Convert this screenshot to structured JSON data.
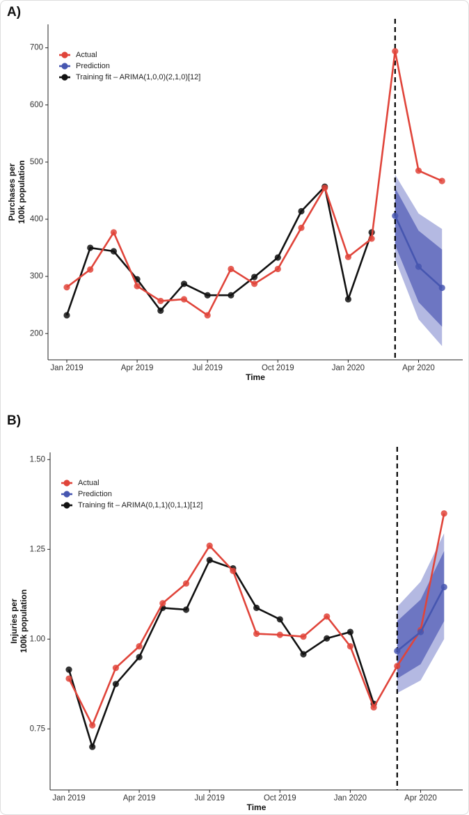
{
  "chart_data": [
    {
      "type": "line",
      "panel_label": "A)",
      "x_label": "Time",
      "y_label": [
        "Purchases per",
        "100k population"
      ],
      "categories": [
        "Jan 2019",
        null,
        null,
        "Apr 2019",
        null,
        null,
        "Jul 2019",
        null,
        null,
        "Oct 2019",
        null,
        null,
        "Jan 2020",
        null,
        null,
        "Apr 2020",
        null
      ],
      "ylim": [
        154,
        741
      ],
      "yticks": [
        200,
        300,
        400,
        500,
        600,
        700
      ],
      "legend": "top-left",
      "forecast_line": true,
      "series": [
        {
          "name": "Actual",
          "color": "#e0443a",
          "values": [
            281,
            312,
            377,
            283,
            257,
            260,
            232,
            313,
            287,
            313,
            385,
            455,
            334,
            366,
            694,
            485,
            467
          ]
        },
        {
          "name": "Prediction",
          "color": "#4656b0",
          "values": [
            null,
            null,
            null,
            null,
            null,
            null,
            null,
            null,
            null,
            null,
            null,
            null,
            null,
            null,
            406,
            317,
            280
          ],
          "bands": [
            {
              "color": "#b4b9e2",
              "low": [
                null,
                null,
                null,
                null,
                null,
                null,
                null,
                null,
                null,
                null,
                null,
                null,
                null,
                null,
                330,
                225,
                178
              ],
              "high": [
                null,
                null,
                null,
                null,
                null,
                null,
                null,
                null,
                null,
                null,
                null,
                null,
                null,
                null,
                478,
                410,
                383
              ]
            },
            {
              "color": "#6d76c2",
              "low": [
                null,
                null,
                null,
                null,
                null,
                null,
                null,
                null,
                null,
                null,
                null,
                null,
                null,
                null,
                355,
                255,
                212
              ],
              "high": [
                null,
                null,
                null,
                null,
                null,
                null,
                null,
                null,
                null,
                null,
                null,
                null,
                null,
                null,
                455,
                380,
                347
              ]
            }
          ]
        },
        {
          "name": "Training fit – ARIMA(1,0,0)(2,1,0)[12]",
          "color": "#111111",
          "values": [
            232,
            350,
            344,
            295,
            240,
            287,
            267,
            267,
            299,
            333,
            414,
            457,
            260,
            377,
            null,
            null,
            null
          ]
        }
      ]
    },
    {
      "type": "line",
      "panel_label": "B)",
      "x_label": "Time",
      "y_label": [
        "Injuries per",
        "100k population"
      ],
      "categories": [
        "Jan 2019",
        null,
        null,
        "Apr 2019",
        null,
        null,
        "Jul 2019",
        null,
        null,
        "Oct 2019",
        null,
        null,
        "Jan 2020",
        null,
        null,
        "Apr 2020",
        null
      ],
      "ylim": [
        0.58,
        1.52
      ],
      "yticks": [
        0.75,
        {
          "value": 1,
          "label": "1.00"
        },
        1.25,
        {
          "value": 1.5,
          "label": "1.50"
        }
      ],
      "legend": "top-left",
      "forecast_line": true,
      "series": [
        {
          "name": "Actual",
          "color": "#e0443a",
          "values": [
            0.89,
            0.76,
            0.92,
            0.98,
            1.1,
            1.155,
            1.26,
            1.19,
            1.015,
            1.012,
            1.007,
            1.063,
            0.98,
            0.81,
            0.925,
            1.025,
            1.35
          ]
        },
        {
          "name": "Prediction",
          "color": "#4656b0",
          "values": [
            null,
            null,
            null,
            null,
            null,
            null,
            null,
            null,
            null,
            null,
            null,
            null,
            null,
            null,
            0.967,
            1.02,
            1.145
          ],
          "bands": [
            {
              "color": "#b4b9e2",
              "low": [
                null,
                null,
                null,
                null,
                null,
                null,
                null,
                null,
                null,
                null,
                null,
                null,
                null,
                null,
                0.85,
                0.885,
                1.0
              ],
              "high": [
                null,
                null,
                null,
                null,
                null,
                null,
                null,
                null,
                null,
                null,
                null,
                null,
                null,
                null,
                1.09,
                1.16,
                1.295
              ]
            },
            {
              "color": "#6d76c2",
              "low": [
                null,
                null,
                null,
                null,
                null,
                null,
                null,
                null,
                null,
                null,
                null,
                null,
                null,
                null,
                0.89,
                0.93,
                1.05
              ],
              "high": [
                null,
                null,
                null,
                null,
                null,
                null,
                null,
                null,
                null,
                null,
                null,
                null,
                null,
                null,
                1.05,
                1.11,
                1.245
              ]
            }
          ]
        },
        {
          "name": "Training fit – ARIMA(0,1,1)(0,1,1)[12]",
          "color": "#111111",
          "values": [
            0.915,
            0.7,
            0.875,
            0.95,
            1.087,
            1.082,
            1.22,
            1.197,
            1.087,
            1.055,
            0.958,
            1.002,
            1.02,
            0.82,
            null,
            null,
            null
          ]
        }
      ]
    }
  ]
}
